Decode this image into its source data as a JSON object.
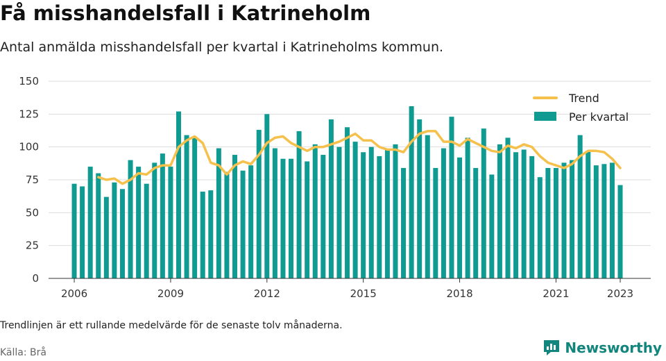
{
  "title": "Få misshandelsfall i Katrineholm",
  "subtitle": "Antal anmälda misshandelsfall per kvartal i Katrineholms kommun.",
  "footnote": "Trendlinjen är ett rullande medelvärde för de senaste tolv månaderna.",
  "source": "Källa: Brå",
  "brand": "Newsworthy",
  "colors": {
    "bar": "#0f9b92",
    "trend": "#f5c04b",
    "grid": "#dddddd",
    "brand": "#12857c"
  },
  "chart_data": {
    "type": "bar",
    "x_unit": "year (quarterly)",
    "ylim": [
      0,
      150
    ],
    "yticks": [
      0,
      25,
      50,
      75,
      100,
      125,
      150
    ],
    "xticks": [
      2006,
      2009,
      2012,
      2015,
      2018,
      2021,
      2023
    ],
    "xrange": [
      2005.2,
      2023.95
    ],
    "grid": true,
    "legend_position": "top-right",
    "series": [
      {
        "name": "Per kvartal",
        "kind": "bar",
        "x": [
          2006.0,
          2006.25,
          2006.5,
          2006.75,
          2007.0,
          2007.25,
          2007.5,
          2007.75,
          2008.0,
          2008.25,
          2008.5,
          2008.75,
          2009.0,
          2009.25,
          2009.5,
          2009.75,
          2010.0,
          2010.25,
          2010.5,
          2010.75,
          2011.0,
          2011.25,
          2011.5,
          2011.75,
          2012.0,
          2012.25,
          2012.5,
          2012.75,
          2013.0,
          2013.25,
          2013.5,
          2013.75,
          2014.0,
          2014.25,
          2014.5,
          2014.75,
          2015.0,
          2015.25,
          2015.5,
          2015.75,
          2016.0,
          2016.25,
          2016.5,
          2016.75,
          2017.0,
          2017.25,
          2017.5,
          2017.75,
          2018.0,
          2018.25,
          2018.5,
          2018.75,
          2019.0,
          2019.25,
          2019.5,
          2019.75,
          2020.0,
          2020.25,
          2020.5,
          2020.75,
          2021.0,
          2021.25,
          2021.5,
          2021.75,
          2022.0,
          2022.25,
          2022.5,
          2022.75,
          2023.0
        ],
        "values": [
          72,
          70,
          85,
          80,
          62,
          73,
          68,
          90,
          85,
          72,
          88,
          95,
          85,
          127,
          109,
          107,
          66,
          67,
          99,
          81,
          94,
          82,
          86,
          113,
          125,
          99,
          91,
          91,
          112,
          89,
          102,
          94,
          121,
          100,
          115,
          104,
          96,
          100,
          93,
          98,
          102,
          84,
          131,
          121,
          109,
          84,
          99,
          123,
          92,
          107,
          84,
          114,
          79,
          102,
          107,
          96,
          98,
          93,
          77,
          84,
          84,
          88,
          90,
          109,
          97,
          86,
          87,
          88,
          71
        ]
      },
      {
        "name": "Trend",
        "kind": "line",
        "x": [
          2006.75,
          2007.0,
          2007.25,
          2007.5,
          2007.75,
          2008.0,
          2008.25,
          2008.5,
          2008.75,
          2009.0,
          2009.25,
          2009.5,
          2009.75,
          2010.0,
          2010.25,
          2010.5,
          2010.75,
          2011.0,
          2011.25,
          2011.5,
          2011.75,
          2012.0,
          2012.25,
          2012.5,
          2012.75,
          2013.0,
          2013.25,
          2013.5,
          2013.75,
          2014.0,
          2014.25,
          2014.5,
          2014.75,
          2015.0,
          2015.25,
          2015.5,
          2015.75,
          2016.0,
          2016.25,
          2016.5,
          2016.75,
          2017.0,
          2017.25,
          2017.5,
          2017.75,
          2018.0,
          2018.25,
          2018.5,
          2018.75,
          2019.0,
          2019.25,
          2019.5,
          2019.75,
          2020.0,
          2020.25,
          2020.5,
          2020.75,
          2021.0,
          2021.25,
          2021.5,
          2021.75,
          2022.0,
          2022.25,
          2022.5,
          2022.75,
          2023.0
        ],
        "values": [
          77,
          75,
          76,
          72,
          75,
          80,
          79,
          84,
          86,
          86,
          100,
          105,
          108,
          103,
          88,
          86,
          79,
          86,
          89,
          87,
          94,
          103,
          107,
          108,
          103,
          100,
          97,
          100,
          100,
          102,
          104,
          107,
          110,
          105,
          105,
          100,
          98,
          98,
          96,
          104,
          110,
          112,
          112,
          104,
          104,
          101,
          106,
          103,
          100,
          97,
          96,
          101,
          99,
          102,
          100,
          93,
          88,
          86,
          84,
          87,
          93,
          97,
          97,
          96,
          91,
          84
        ]
      }
    ]
  }
}
